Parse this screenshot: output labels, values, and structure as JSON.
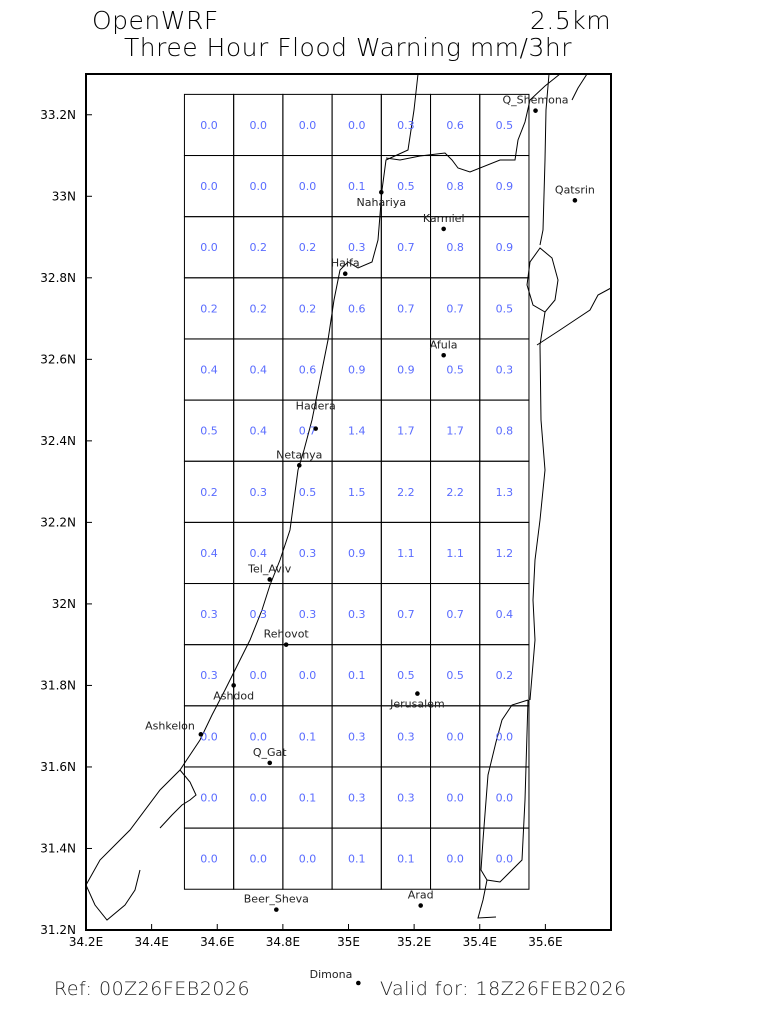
{
  "header": {
    "model": "OpenWRF",
    "resolution": "2.5km",
    "title": "Three Hour Flood Warning mm/3hr"
  },
  "footer": {
    "ref": "Ref: 00Z26FEB2026",
    "valid": "Valid for: 18Z26FEB2026"
  },
  "colors": {
    "values": "#5a6cff",
    "lines": "#000000"
  },
  "map": {
    "lon_range": [
      34.2,
      35.8
    ],
    "lat_range": [
      31.2,
      33.3
    ],
    "x_ticks": [
      "34.2E",
      "34.4E",
      "34.6E",
      "34.8E",
      "35E",
      "35.2E",
      "35.4E",
      "35.6E"
    ],
    "x_tick_values": [
      34.2,
      34.4,
      34.6,
      34.8,
      35.0,
      35.2,
      35.4,
      35.6
    ],
    "y_ticks": [
      "31.2N",
      "31.4N",
      "31.6N",
      "31.8N",
      "32N",
      "32.2N",
      "32.4N",
      "32.6N",
      "32.8N",
      "33N",
      "33.2N"
    ],
    "y_tick_values": [
      31.2,
      31.4,
      31.6,
      31.8,
      32.0,
      32.2,
      32.4,
      32.6,
      32.8,
      33.0,
      33.2
    ],
    "grid_lon_range": [
      34.5,
      35.55
    ],
    "grid_lat_range": [
      31.3,
      33.25
    ],
    "grid_values": [
      [
        "0.0",
        "0.0",
        "0.0",
        "0.0",
        "0.3",
        "0.6",
        "0.5"
      ],
      [
        "0.0",
        "0.0",
        "0.0",
        "0.1",
        "0.5",
        "0.8",
        "0.9"
      ],
      [
        "0.0",
        "0.2",
        "0.2",
        "0.3",
        "0.7",
        "0.8",
        "0.9"
      ],
      [
        "0.2",
        "0.2",
        "0.2",
        "0.6",
        "0.7",
        "0.7",
        "0.5"
      ],
      [
        "0.4",
        "0.4",
        "0.6",
        "0.9",
        "0.9",
        "0.5",
        "0.3"
      ],
      [
        "0.5",
        "0.4",
        "0.7",
        "1.4",
        "1.7",
        "1.7",
        "0.8"
      ],
      [
        "0.2",
        "0.3",
        "0.5",
        "1.5",
        "2.2",
        "2.2",
        "1.3"
      ],
      [
        "0.4",
        "0.4",
        "0.3",
        "0.9",
        "1.1",
        "1.1",
        "1.2"
      ],
      [
        "0.3",
        "0.3",
        "0.3",
        "0.3",
        "0.7",
        "0.7",
        "0.4"
      ],
      [
        "0.3",
        "0.0",
        "0.0",
        "0.1",
        "0.5",
        "0.5",
        "0.2"
      ],
      [
        "0.0",
        "0.0",
        "0.1",
        "0.3",
        "0.3",
        "0.0",
        "0.0"
      ],
      [
        "0.0",
        "0.0",
        "0.1",
        "0.3",
        "0.3",
        "0.0",
        "0.0"
      ],
      [
        "0.0",
        "0.0",
        "0.0",
        "0.1",
        "0.1",
        "0.0",
        "0.0"
      ]
    ],
    "cities": [
      {
        "name": "Q_Shemona",
        "lon": 35.57,
        "lat": 33.21
      },
      {
        "name": "Qatsrin",
        "lon": 35.69,
        "lat": 32.99
      },
      {
        "name": "Nahariya",
        "lon": 35.1,
        "lat": 33.01
      },
      {
        "name": "Karmiel",
        "lon": 35.29,
        "lat": 32.92
      },
      {
        "name": "Haifa",
        "lon": 34.99,
        "lat": 32.81
      },
      {
        "name": "Afula",
        "lon": 35.29,
        "lat": 32.61
      },
      {
        "name": "Hadera",
        "lon": 34.9,
        "lat": 32.43
      },
      {
        "name": "Netanya",
        "lon": 34.85,
        "lat": 32.34
      },
      {
        "name": "Tel_Aviv",
        "lon": 34.76,
        "lat": 32.06
      },
      {
        "name": "Rehovot",
        "lon": 34.81,
        "lat": 31.9
      },
      {
        "name": "Ashdod",
        "lon": 34.65,
        "lat": 31.8
      },
      {
        "name": "Jerusalem",
        "lon": 35.21,
        "lat": 31.78
      },
      {
        "name": "Ashkelon",
        "lon": 34.55,
        "lat": 31.68
      },
      {
        "name": "Q_Gat",
        "lon": 34.76,
        "lat": 31.61
      },
      {
        "name": "Beer_Sheva",
        "lon": 34.78,
        "lat": 31.25
      },
      {
        "name": "Arad",
        "lon": 35.22,
        "lat": 31.26
      },
      {
        "name": "Dimona",
        "lon": 35.03,
        "lat": 31.07
      }
    ]
  }
}
